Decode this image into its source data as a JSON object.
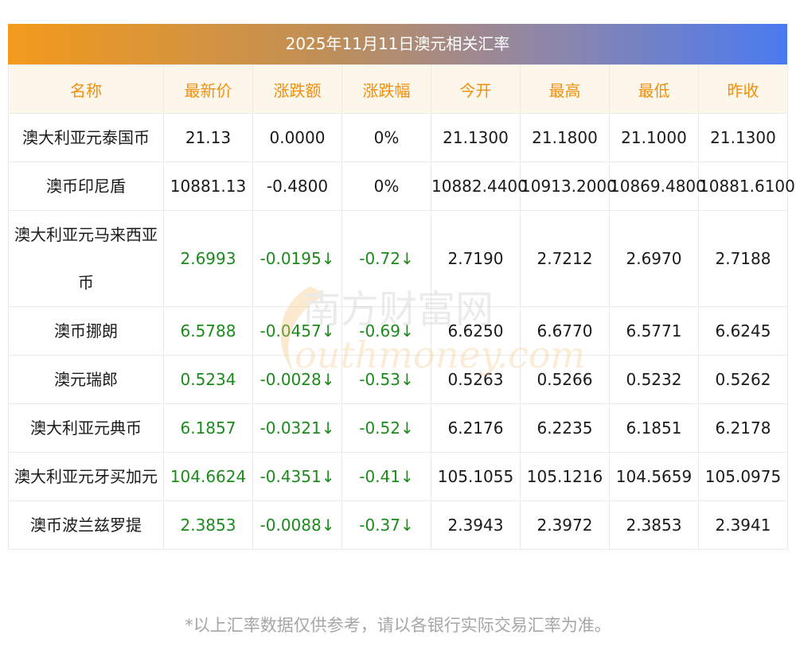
{
  "title": "2025年11月11日澳元相关汇率",
  "headers": [
    "名称",
    "最新价",
    "涨跌额",
    "涨跌幅",
    "今开",
    "最高",
    "最低",
    "昨收"
  ],
  "rows": [
    {
      "name": "澳大利亚元泰国币",
      "latest": "21.13",
      "change": "0.0000",
      "pct": "0%",
      "open": "21.1300",
      "high": "21.1800",
      "low": "21.1000",
      "prev": "21.1300",
      "dir": "flat"
    },
    {
      "name": "澳币印尼盾",
      "latest": "10881.13",
      "change": "-0.4800",
      "pct": "0%",
      "open": "10882.4400",
      "high": "10913.2000",
      "low": "10869.4800",
      "prev": "10881.6100",
      "dir": "flat"
    },
    {
      "name": "澳大利亚元马来西亚币",
      "latest": "2.6993",
      "change": "-0.0195↓",
      "pct": "-0.72↓",
      "open": "2.7190",
      "high": "2.7212",
      "low": "2.6970",
      "prev": "2.7188",
      "dir": "down"
    },
    {
      "name": "澳币挪朗",
      "latest": "6.5788",
      "change": "-0.0457↓",
      "pct": "-0.69↓",
      "open": "6.6250",
      "high": "6.6770",
      "low": "6.5771",
      "prev": "6.6245",
      "dir": "down"
    },
    {
      "name": "澳元瑞郎",
      "latest": "0.5234",
      "change": "-0.0028↓",
      "pct": "-0.53↓",
      "open": "0.5263",
      "high": "0.5266",
      "low": "0.5232",
      "prev": "0.5262",
      "dir": "down"
    },
    {
      "name": "澳大利亚元典币",
      "latest": "6.1857",
      "change": "-0.0321↓",
      "pct": "-0.52↓",
      "open": "6.2176",
      "high": "6.2235",
      "low": "6.1851",
      "prev": "6.2178",
      "dir": "down"
    },
    {
      "name": "澳大利亚元牙买加元",
      "latest": "104.6624",
      "change": "-0.4351↓",
      "pct": "-0.41↓",
      "open": "105.1055",
      "high": "105.1216",
      "low": "104.5659",
      "prev": "105.0975",
      "dir": "down"
    },
    {
      "name": "澳币波兰兹罗提",
      "latest": "2.3853",
      "change": "-0.0088↓",
      "pct": "-0.37↓",
      "open": "2.3943",
      "high": "2.3972",
      "low": "2.3853",
      "prev": "2.3941",
      "dir": "down"
    }
  ],
  "watermark": {
    "cn": "南方财富网",
    "en": "outhmoney.com"
  },
  "footnote": "*以上汇率数据仅供参考，请以各银行实际交易汇率为准。",
  "colors": {
    "header_text": "#f0900f",
    "header_bg": "#fdf6ea",
    "down": "#1c8b1c"
  }
}
